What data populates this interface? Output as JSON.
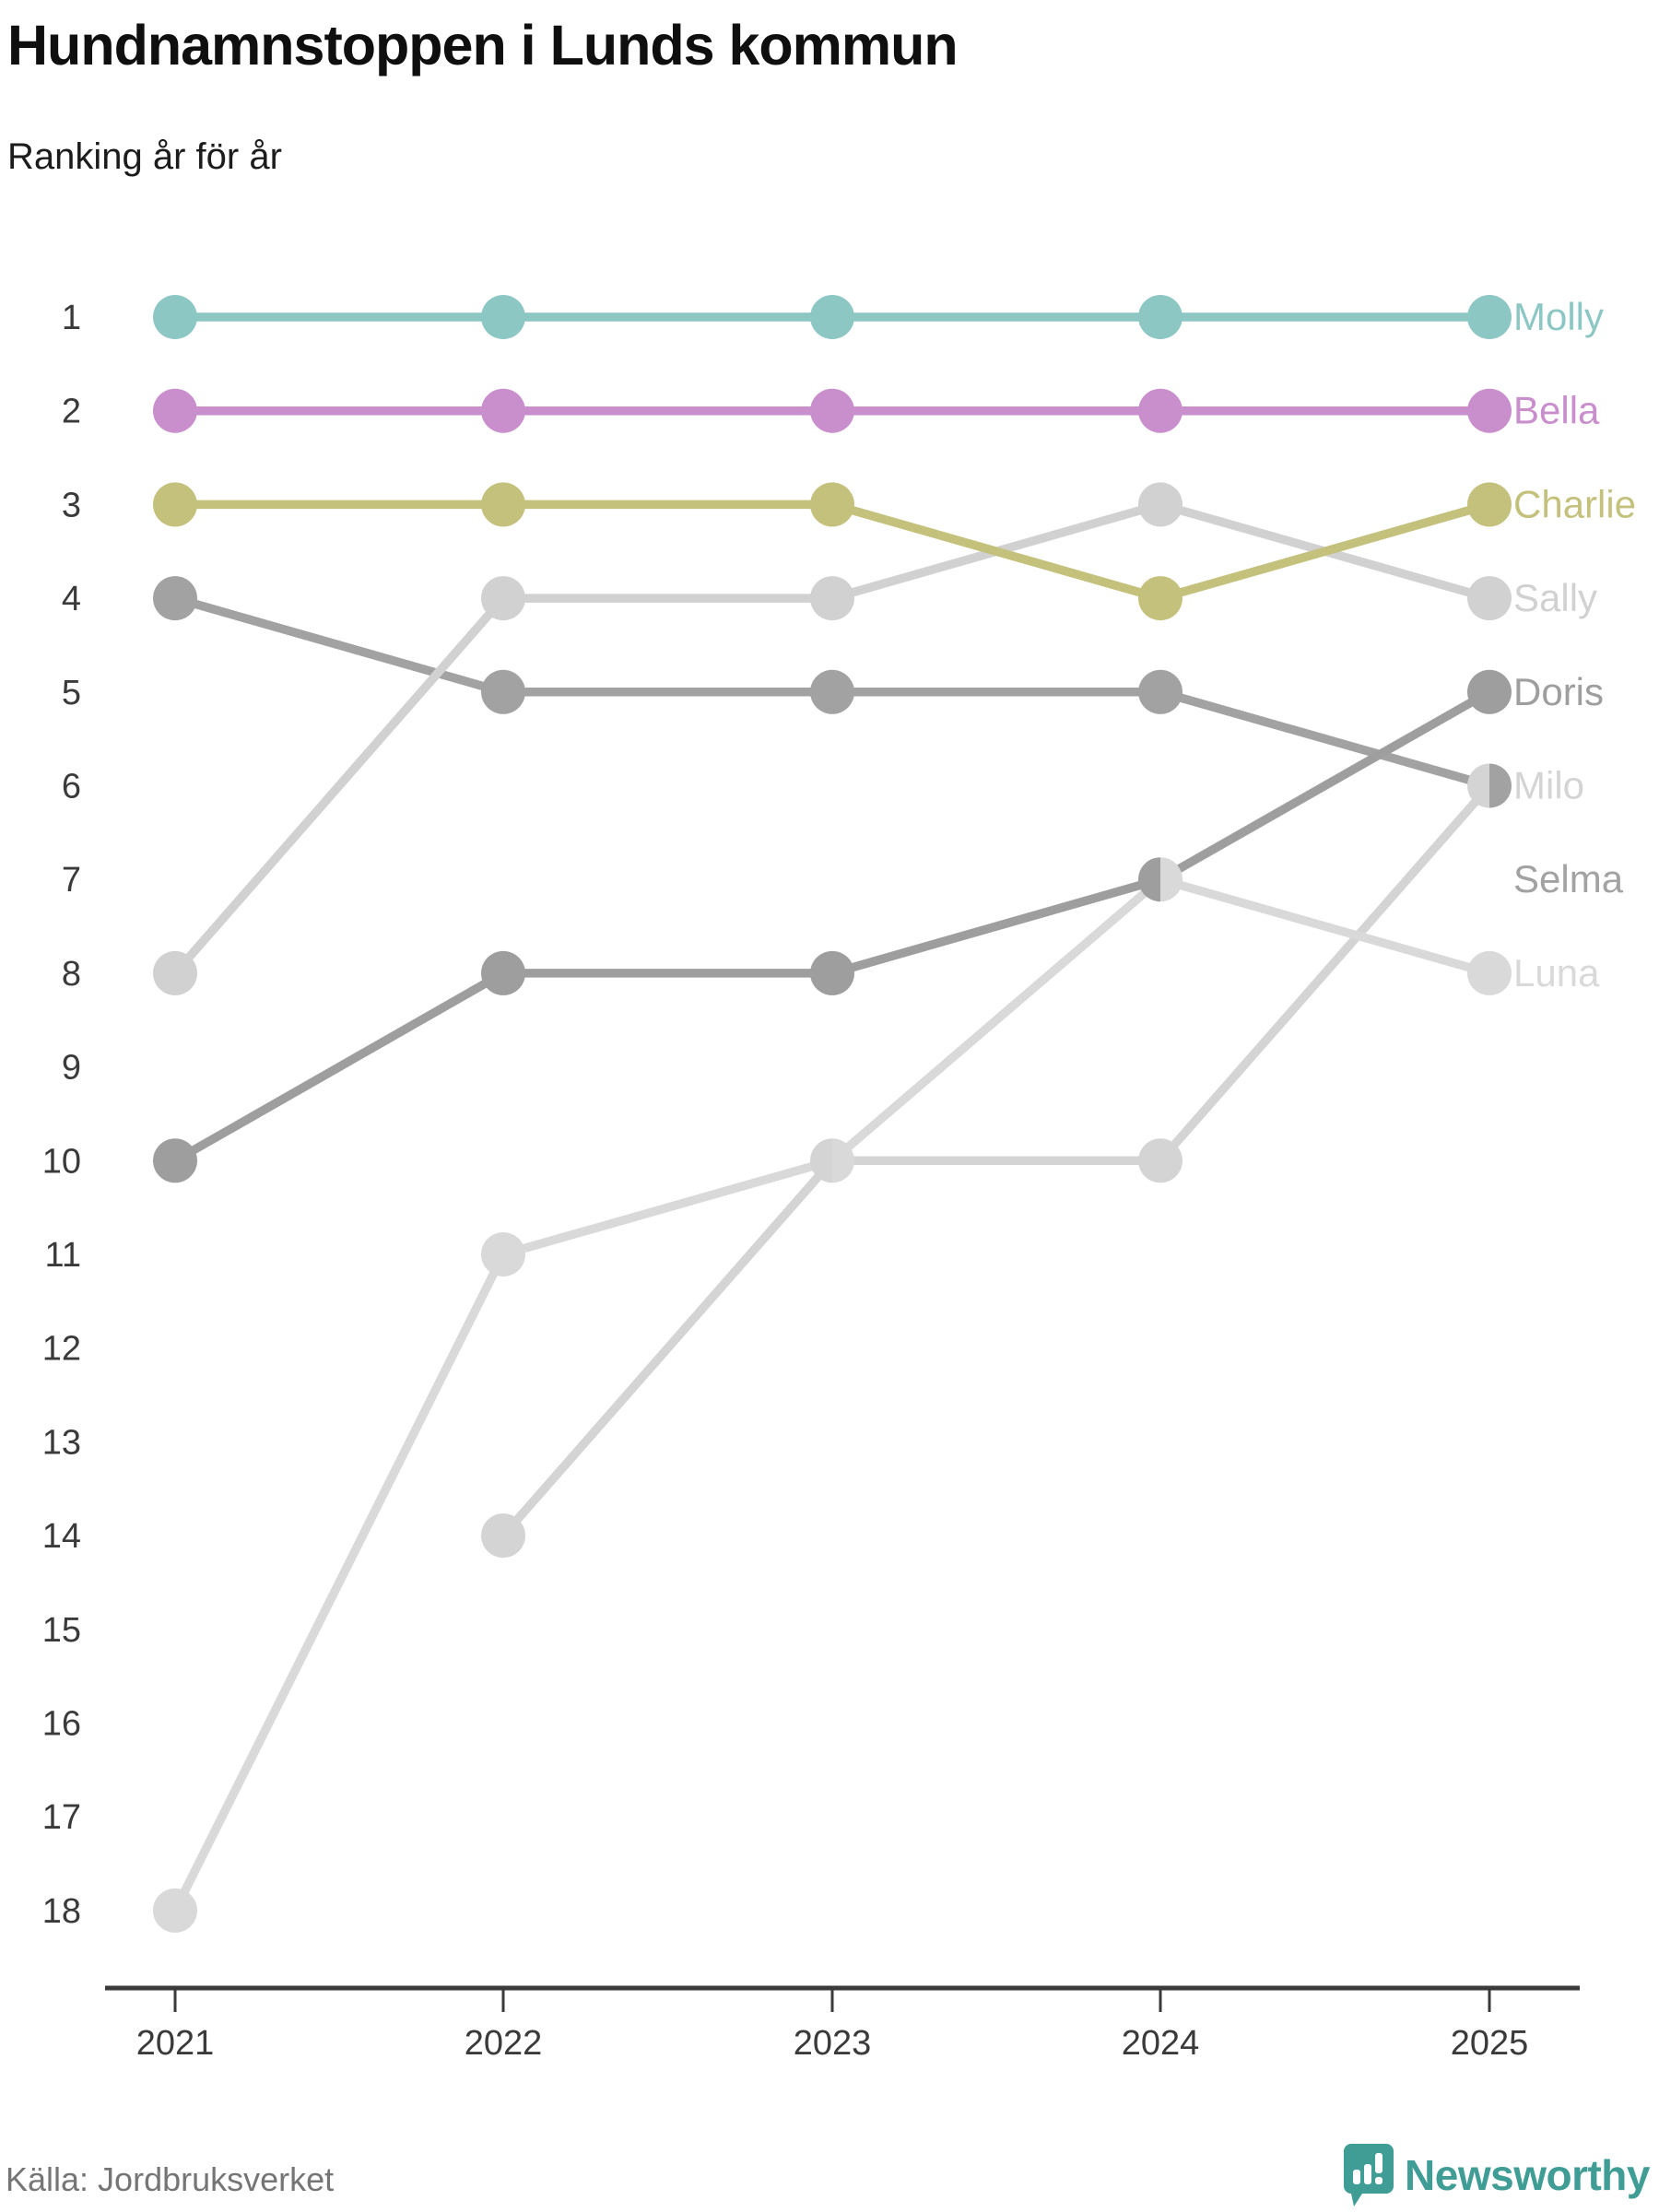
{
  "header": {
    "title": "Hundnamnstoppen i Lunds kommun",
    "subtitle": "Ranking år för år"
  },
  "footer": {
    "source": "Källa: Jordbruksverket",
    "brand": "Newsworthy"
  },
  "colors": {
    "brand_teal": "#3f9d95",
    "axis": "#3a3a3a",
    "tick_label": "#3a3a3a"
  },
  "chart_data": {
    "type": "line",
    "subtype": "bump-ranking",
    "x": [
      2021,
      2022,
      2023,
      2024,
      2025
    ],
    "ylim": [
      1,
      18
    ],
    "y_direction": "1-is-top",
    "grid": false,
    "legend_position": "right-edge-labels",
    "series": [
      {
        "name": "Molly",
        "color": "#8cc7c4",
        "ranks": [
          1,
          1,
          1,
          1,
          1
        ],
        "label_row": 1
      },
      {
        "name": "Bella",
        "color": "#c98ecc",
        "ranks": [
          2,
          2,
          2,
          2,
          2
        ],
        "label_row": 2
      },
      {
        "name": "Charlie",
        "color": "#c4c17c",
        "ranks": [
          3,
          3,
          3,
          4,
          3
        ],
        "label_row": 3
      },
      {
        "name": "Sally",
        "color": "#d1d1d1",
        "ranks": [
          8,
          4,
          4,
          3,
          4
        ],
        "label_row": 4
      },
      {
        "name": "Doris",
        "color": "#9e9e9e",
        "ranks": [
          10,
          8,
          8,
          7,
          5
        ],
        "label_row": 5
      },
      {
        "name": "Milo",
        "color": "#d4d4d4",
        "ranks": [
          null,
          14,
          10,
          10,
          6
        ],
        "label_row": 6
      },
      {
        "name": "Selma",
        "color": "#a2a2a2",
        "ranks": [
          4,
          5,
          5,
          5,
          6
        ],
        "label_row": 7
      },
      {
        "name": "Luna",
        "color": "#d9d9d9",
        "ranks": [
          18,
          11,
          10,
          7,
          8
        ],
        "label_row": 8
      }
    ],
    "ties_drawn_as_half_dots": [
      {
        "year": 2023,
        "rank": 10,
        "left": "Milo",
        "right": "Luna"
      },
      {
        "year": 2024,
        "rank": 7,
        "left": "Doris",
        "right": "Luna"
      },
      {
        "year": 2025,
        "rank": 6,
        "left": "Milo",
        "right": "Selma"
      }
    ],
    "draw_order": [
      "Molly",
      "Bella",
      "Milo",
      "Luna",
      "Selma",
      "Doris",
      "Sally",
      "Charlie"
    ]
  }
}
